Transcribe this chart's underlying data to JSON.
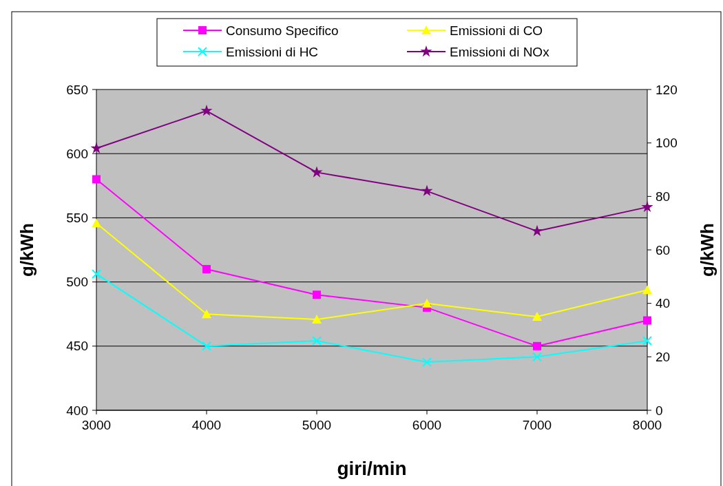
{
  "chart_data": {
    "type": "line",
    "xlabel": "giri/min",
    "ylabel": "g/kWh",
    "y2label": "g/kWh",
    "x": [
      3000,
      4000,
      5000,
      6000,
      7000,
      8000
    ],
    "xlim": [
      3000,
      8000
    ],
    "xticks": [
      3000,
      4000,
      5000,
      6000,
      7000,
      8000
    ],
    "ylim": [
      400,
      650
    ],
    "yticks": [
      400,
      450,
      500,
      550,
      600,
      650
    ],
    "y2lim": [
      0,
      120
    ],
    "y2ticks": [
      0,
      20,
      40,
      60,
      80,
      100,
      120
    ],
    "grid": "y",
    "legend": "top",
    "line_style": "solid",
    "series": [
      {
        "name": "Consumo Specifico",
        "color": "#ff00ff",
        "marker": "square",
        "values": [
          580,
          510,
          490,
          480,
          450,
          470
        ]
      },
      {
        "name": "Emissioni di CO",
        "color": "#ffff00",
        "marker": "triangle",
        "axis": "y2",
        "values": [
          70,
          36,
          34,
          40,
          35,
          45
        ]
      },
      {
        "name": "Emissioni di HC",
        "color": "#00ffff",
        "marker": "cross",
        "axis": "y2",
        "values": [
          51,
          24,
          26,
          18,
          20,
          26
        ]
      },
      {
        "name": "Emissioni di NOx",
        "color": "#800080",
        "marker": "star",
        "axis": "y2",
        "values": [
          98,
          112,
          89,
          82,
          67,
          76
        ]
      }
    ]
  }
}
